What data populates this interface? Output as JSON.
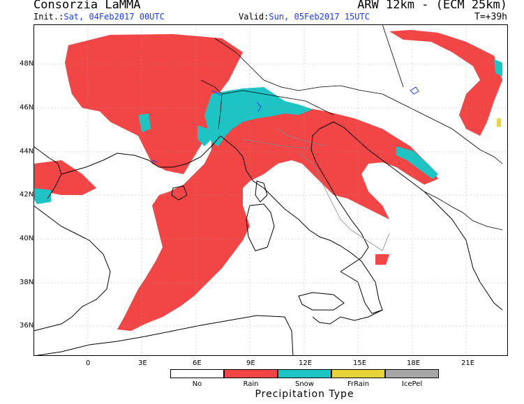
{
  "header": {
    "producer": "Consorzia LaMMA",
    "model": "ARW 12km - (ECM 25km)",
    "init_label": "Init.:",
    "init_value": "Sat, 04Feb2017 00UTC",
    "valid_label": "Valid:",
    "valid_value": "Sun, 05Feb2017 15UTC",
    "lead_time": "T=+39h"
  },
  "axes": {
    "lat_labels": [
      "48N",
      "46N",
      "44N",
      "42N",
      "40N",
      "38N",
      "36N"
    ],
    "lon_labels": [
      "0",
      "3E",
      "6E",
      "9E",
      "12E",
      "15E",
      "18E",
      "21E"
    ]
  },
  "legend": {
    "title": "Precipitation Type",
    "items": [
      {
        "label": "No",
        "color": "#ffffff"
      },
      {
        "label": "Rain",
        "color": "#f24545"
      },
      {
        "label": "Snow",
        "color": "#1ec3c3"
      },
      {
        "label": "FrRain",
        "color": "#e8d53a"
      },
      {
        "label": "IcePel",
        "color": "#a7a7a7"
      }
    ]
  },
  "colors": {
    "rain": "#f24545",
    "snow": "#1ec3c3",
    "coast": "#000000",
    "border": "#000000",
    "grid": "#ffffff",
    "lake": "#1a3cff"
  }
}
